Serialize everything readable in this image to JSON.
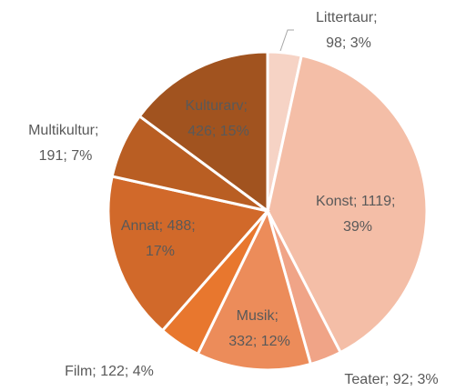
{
  "chart_data": {
    "type": "pie",
    "values": [
      98,
      1119,
      92,
      332,
      122,
      488,
      191,
      426
    ],
    "value_labels": [
      "Littertaur; 98; 3%",
      "Konst; 1119; 39%",
      "Teater; 92; 3%",
      "Musik; 332; 12%",
      "Film; 122; 4%",
      "Annat; 488; 17%",
      "Multikultur; 191; 7%",
      "Kulturarv; 426; 15%"
    ],
    "colors": [
      "#f6d3c5",
      "#f4bea7",
      "#f0a487",
      "#ec8c5a",
      "#e8772e",
      "#d1692a",
      "#b95e23",
      "#a1531f"
    ]
  }
}
